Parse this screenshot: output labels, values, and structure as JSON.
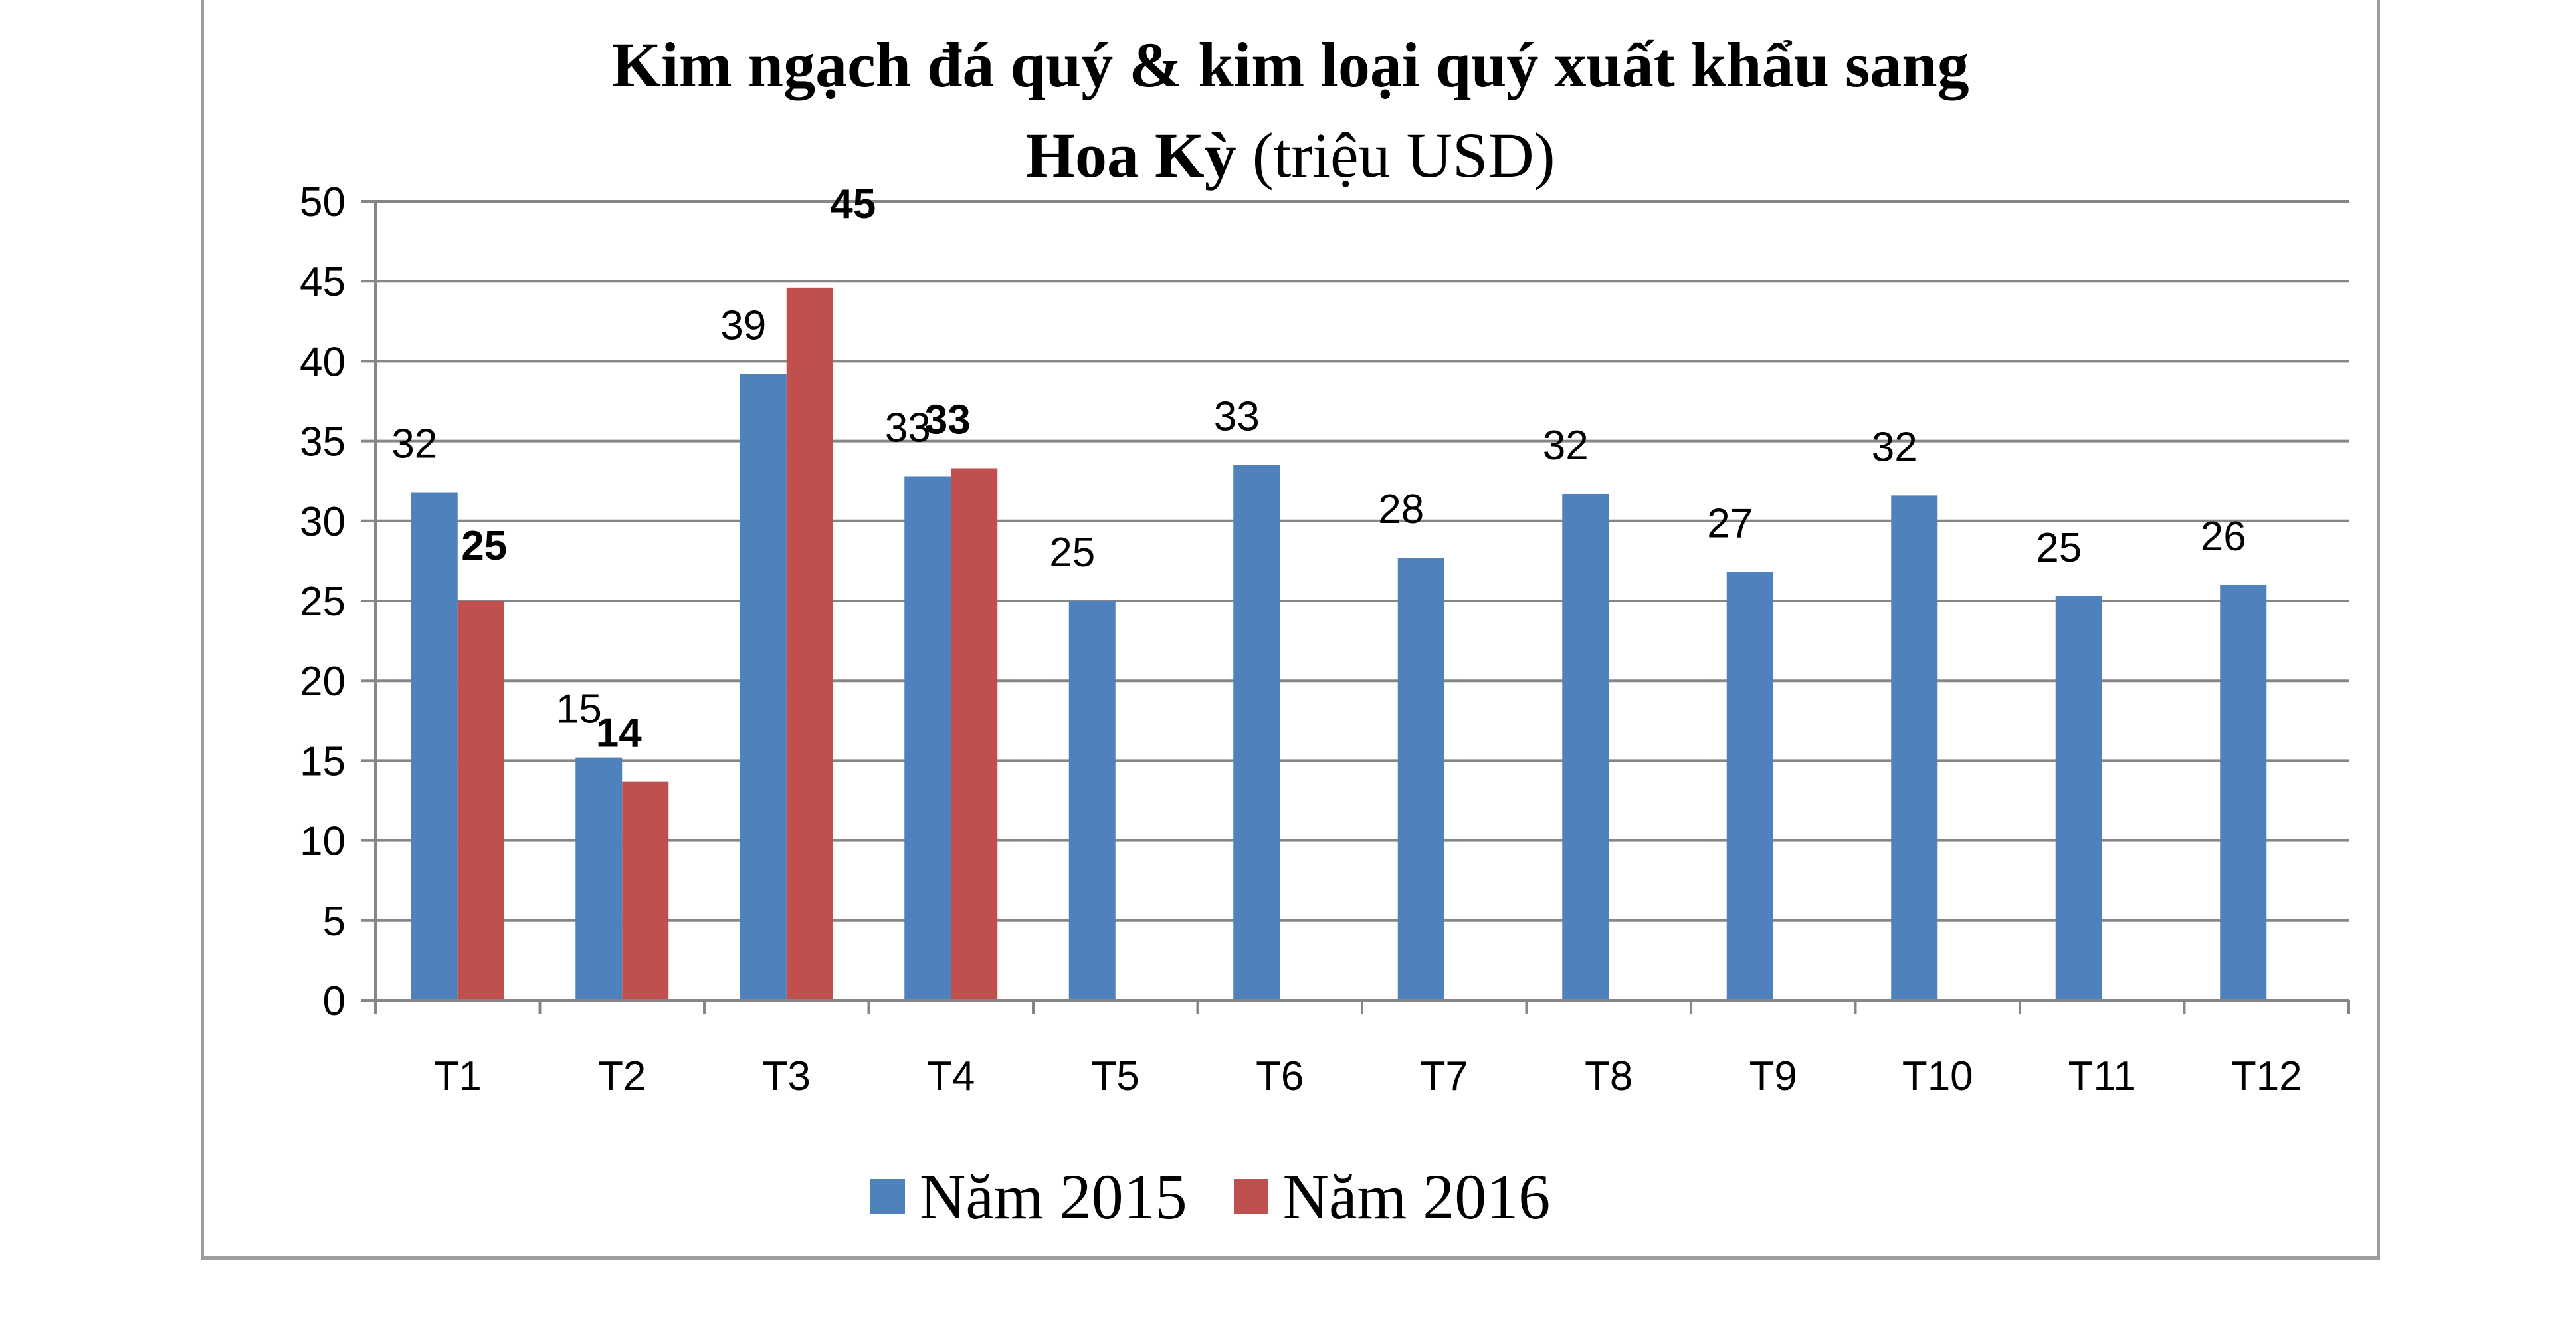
{
  "title": {
    "line1": "Kim ngạch đá quý & kim loại quý xuất khẩu sang",
    "line2_bold": "Hoa Kỳ",
    "line2_rest": " (triệu USD)"
  },
  "chart_data": {
    "type": "bar",
    "categories": [
      "T1",
      "T2",
      "T3",
      "T4",
      "T5",
      "T6",
      "T7",
      "T8",
      "T9",
      "T10",
      "T11",
      "T12"
    ],
    "series": [
      {
        "name": "Năm 2015",
        "color": "#4f81bd",
        "values": [
          31.8,
          15.2,
          39.2,
          32.8,
          25.0,
          33.5,
          27.7,
          31.7,
          26.8,
          31.6,
          25.3,
          26.0
        ],
        "labels": [
          "32",
          "15",
          "39",
          "33",
          "25",
          "33",
          "28",
          "32",
          "27",
          "32",
          "25",
          "26"
        ]
      },
      {
        "name": "Năm 2016",
        "color": "#c0504d",
        "values": [
          25.0,
          13.7,
          44.6,
          33.3,
          null,
          null,
          null,
          null,
          null,
          null,
          null,
          null
        ],
        "labels": [
          "25",
          "14",
          "45",
          "33",
          null,
          null,
          null,
          null,
          null,
          null,
          null,
          null
        ]
      }
    ],
    "ylim": [
      0,
      50
    ],
    "yticks": [
      "0",
      "5",
      "10",
      "15",
      "20",
      "25",
      "30",
      "35",
      "40",
      "45",
      "50"
    ],
    "grid": true,
    "legend_position": "bottom"
  }
}
